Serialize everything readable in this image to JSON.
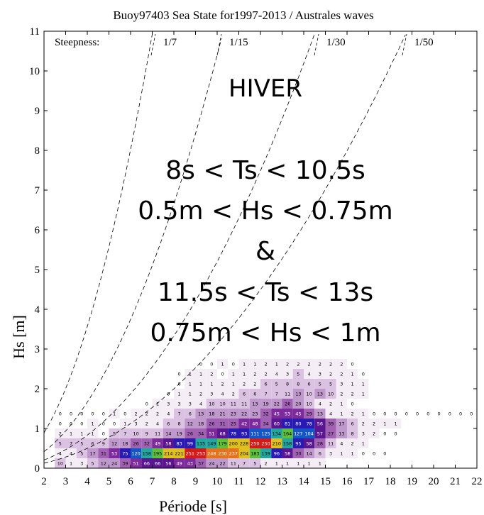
{
  "chart_data": {
    "type": "heatmap",
    "title": "Buoy97403 Sea State for1997-2013 / Australes waves",
    "xlabel": "Période [s]",
    "ylabel": "Hs [m]",
    "xlim": [
      2,
      22
    ],
    "ylim": [
      0,
      11
    ],
    "xticks": [
      "2",
      "3",
      "4",
      "5",
      "6",
      "7",
      "8",
      "9",
      "10",
      "11",
      "12",
      "13",
      "14",
      "15",
      "16",
      "17",
      "18",
      "19",
      "20",
      "21",
      "22"
    ],
    "yticks": [
      "0",
      "1",
      "2",
      "3",
      "4",
      "5",
      "6",
      "7",
      "8",
      "9",
      "10",
      "11"
    ],
    "grid": false,
    "steepness_label": "Steepness:",
    "steepness_curves": [
      {
        "label": "1/7",
        "ratio": 7
      },
      {
        "label": "1/15",
        "ratio": 15
      },
      {
        "label": "1/30",
        "ratio": 30
      },
      {
        "label": "1/50",
        "ratio": 50
      }
    ],
    "annotation": [
      "HIVER",
      "8s < Ts < 10.5s",
      "0.5m < Hs < 0.75m",
      "&",
      "11.5s < Ts < 13s",
      "0.75m < Hs < 1m"
    ],
    "cell_size": {
      "period_s": 0.5,
      "hs_m": 0.25
    },
    "rows": [
      {
        "hs": 0.0,
        "t0": 2.5,
        "counts": [
          10,
          1,
          3,
          5,
          12,
          24,
          39,
          51,
          66,
          66,
          56,
          49,
          43,
          37,
          24,
          22,
          11,
          7,
          5,
          2,
          1,
          1,
          1,
          1,
          1
        ]
      },
      {
        "hs": 0.25,
        "t0": 2.5,
        "counts": [
          4,
          4,
          5,
          17,
          31,
          53,
          75,
          120,
          158,
          195,
          214,
          221,
          251,
          253,
          248,
          230,
          237,
          204,
          183,
          139,
          96,
          58,
          30,
          14,
          6,
          3,
          1,
          1,
          0,
          0,
          0
        ]
      },
      {
        "hs": 0.5,
        "t0": 2.5,
        "counts": [
          5,
          7,
          5,
          6,
          9,
          12,
          18,
          26,
          32,
          49,
          58,
          83,
          99,
          135,
          149,
          179,
          200,
          228,
          250,
          250,
          210,
          158,
          95,
          58,
          28,
          11,
          4,
          2,
          1
        ]
      },
      {
        "hs": 0.75,
        "t0": 2.5,
        "counts": [
          2,
          1,
          1,
          1,
          0,
          5,
          7,
          10,
          9,
          11,
          14,
          19,
          26,
          34,
          51,
          68,
          78,
          93,
          111,
          125,
          134,
          164,
          127,
          104,
          57,
          27,
          13,
          8,
          3,
          2,
          0,
          0
        ]
      },
      {
        "hs": 1.0,
        "t0": 2.5,
        "counts": [
          0,
          0,
          0,
          1,
          0,
          0,
          1,
          3,
          2,
          4,
          6,
          8,
          12,
          18,
          26,
          31,
          25,
          42,
          48,
          34,
          60,
          81,
          80,
          78,
          56,
          39,
          17,
          6,
          2,
          2,
          1,
          1
        ]
      },
      {
        "hs": 1.25,
        "t0": 2.5,
        "counts": [
          0,
          0,
          0,
          0,
          0,
          1,
          0,
          2,
          2,
          2,
          4,
          7,
          6,
          13,
          18,
          21,
          23,
          22,
          23,
          32,
          45,
          53,
          45,
          29,
          13,
          4,
          1,
          2,
          1,
          0,
          0,
          0,
          0,
          0,
          0,
          0,
          0,
          0,
          0,
          0,
          0,
          0,
          0,
          0,
          0,
          0,
          0,
          0,
          0,
          0,
          0,
          0,
          0,
          0,
          0,
          0,
          0,
          0,
          0,
          0,
          0,
          0,
          0,
          0,
          0,
          0,
          0,
          0,
          0,
          0,
          0,
          0,
          0,
          0,
          0,
          0,
          0,
          0
        ]
      },
      {
        "hs": 1.5,
        "t0": 6.5,
        "counts": [
          0,
          1,
          3,
          3,
          3,
          4,
          10,
          10,
          11,
          11,
          13,
          19,
          22,
          26,
          20,
          10,
          4,
          2,
          1,
          0
        ]
      },
      {
        "hs": 1.75,
        "t0": 7.5,
        "counts": [
          0,
          1,
          1,
          2,
          3,
          4,
          2,
          6,
          6,
          7,
          7,
          11,
          13,
          10,
          13,
          10,
          2,
          2,
          1
        ]
      },
      {
        "hs": 2.0,
        "t0": 8.0,
        "counts": [
          0,
          1,
          1,
          1,
          2,
          1,
          2,
          2,
          6,
          5,
          8,
          8,
          6,
          5,
          5,
          3,
          1,
          1
        ]
      },
      {
        "hs": 2.25,
        "t0": 8.0,
        "counts": [
          0,
          1,
          1,
          2,
          0,
          1,
          1,
          2,
          2,
          4,
          3,
          5,
          4,
          3,
          2,
          2,
          1,
          0
        ]
      },
      {
        "hs": 2.5,
        "t0": 9.0,
        "counts": [
          0,
          0,
          1,
          0,
          1,
          1,
          2,
          1,
          2,
          2,
          2,
          2,
          2,
          2,
          0
        ]
      }
    ]
  }
}
